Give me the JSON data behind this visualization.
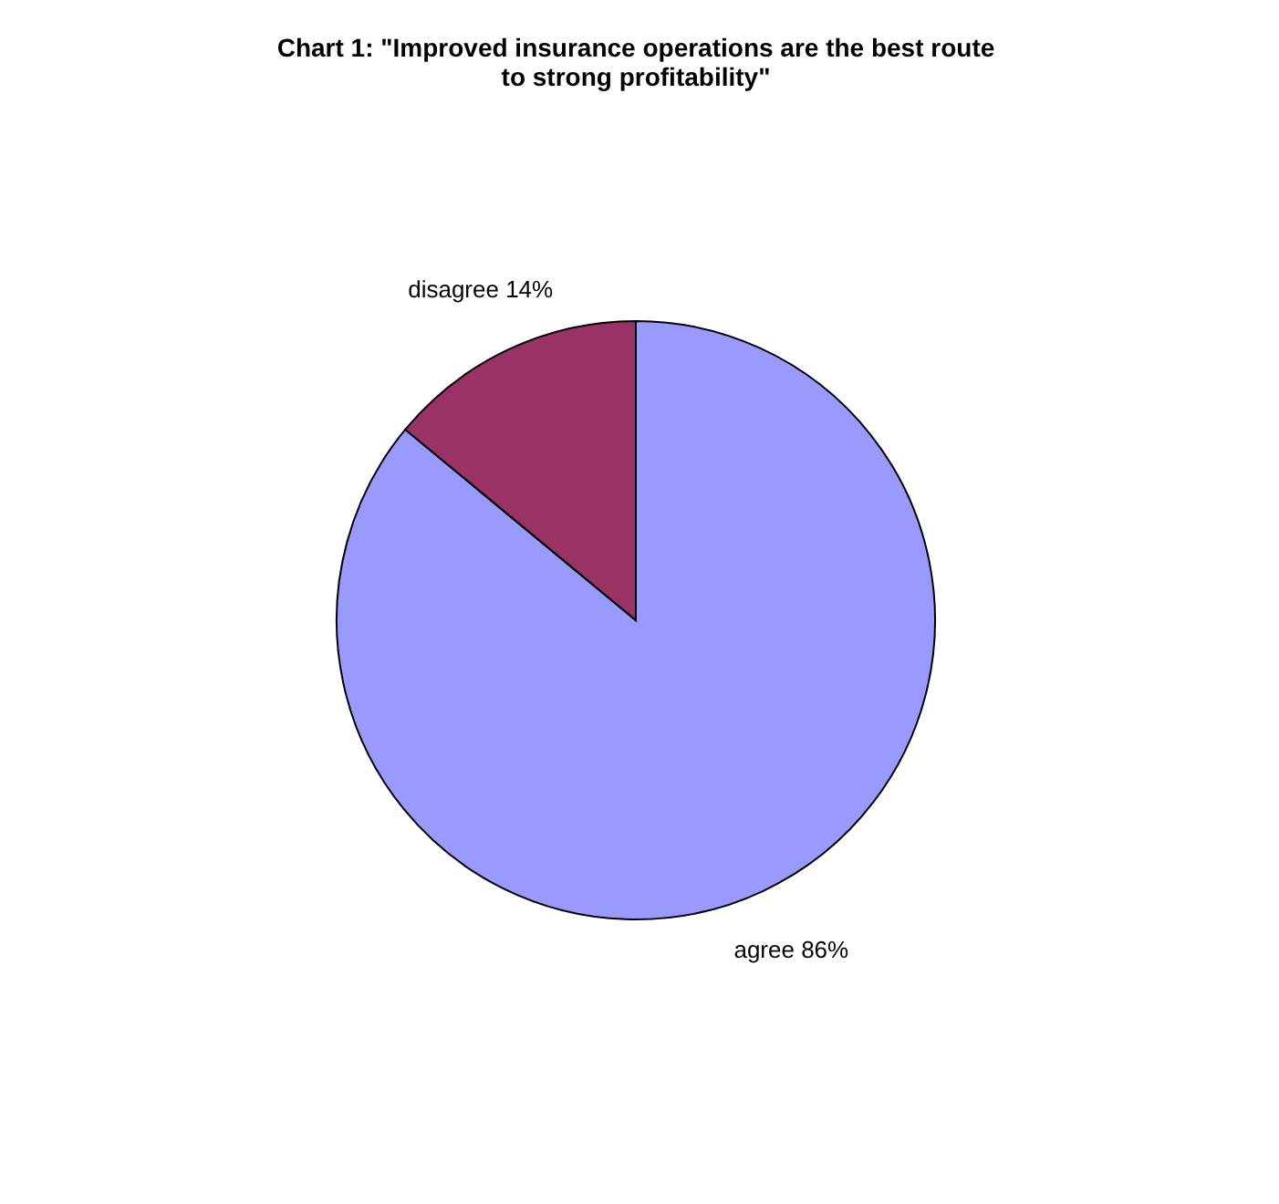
{
  "chart_data": {
    "type": "pie",
    "title": [
      "Chart 1:  \"Improved insurance operations are the best route",
      "to strong profitability\""
    ],
    "categories": [
      "agree",
      "disagree"
    ],
    "values": [
      86,
      14
    ],
    "colors": [
      "#9999ff",
      "#993366"
    ],
    "value_labels": [
      "86%",
      "14%"
    ],
    "legend": false
  }
}
